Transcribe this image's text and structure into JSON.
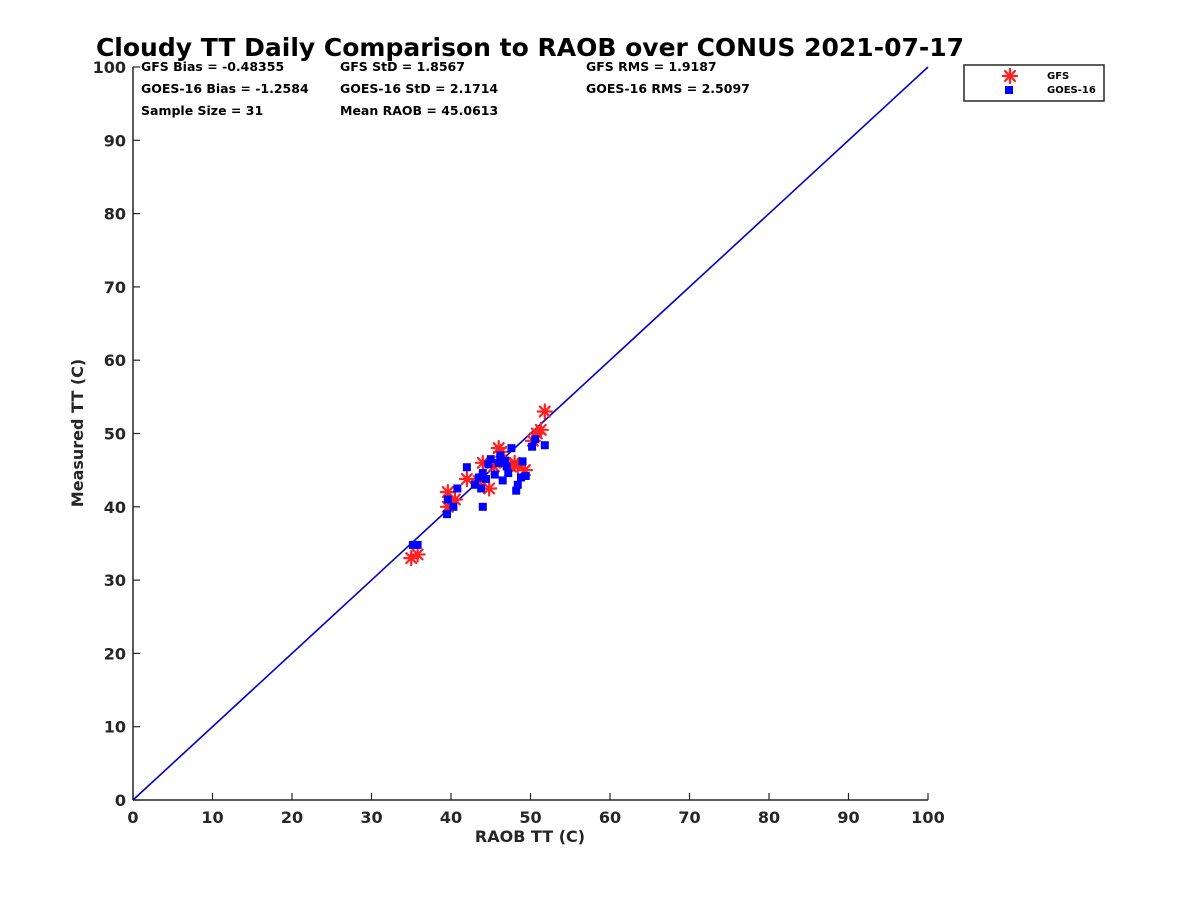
{
  "chart_data": {
    "type": "scatter",
    "title": "Cloudy TT Daily Comparison to RAOB over CONUS 2021-07-17",
    "xlabel": "RAOB TT (C)",
    "ylabel": "Measured TT (C)",
    "xlim": [
      0,
      100
    ],
    "ylim": [
      0,
      100
    ],
    "xticks": [
      "0",
      "10",
      "20",
      "30",
      "40",
      "50",
      "60",
      "70",
      "80",
      "90",
      "100"
    ],
    "yticks": [
      "0",
      "10",
      "20",
      "30",
      "40",
      "50",
      "60",
      "70",
      "80",
      "90",
      "100"
    ],
    "grid": false,
    "legend_position": "top-right (outside)",
    "stats": {
      "gfs_bias": "GFS Bias = -0.48355",
      "gfs_std": "GFS StD = 1.8567",
      "gfs_rms": "GFS RMS = 1.9187",
      "goes_bias": "GOES-16 Bias = -1.2584",
      "goes_std": "GOES-16 StD = 2.1714",
      "goes_rms": "GOES-16 RMS = 2.5097",
      "sample_size": "Sample Size = 31",
      "mean_raob": "Mean RAOB = 45.0613"
    },
    "reference_line": {
      "x": [
        0,
        100
      ],
      "y": [
        0,
        100
      ],
      "color": "#0000cc"
    },
    "series": [
      {
        "name": "GFS",
        "marker": "asterisk",
        "color": "#ff2020",
        "points": [
          [
            35.0,
            33.0
          ],
          [
            35.8,
            33.5
          ],
          [
            39.6,
            40.0
          ],
          [
            39.6,
            42.0
          ],
          [
            40.5,
            41.0
          ],
          [
            42.0,
            43.8
          ],
          [
            43.5,
            43.5
          ],
          [
            44.0,
            46.0
          ],
          [
            44.8,
            42.5
          ],
          [
            45.4,
            45.5
          ],
          [
            46.0,
            48.0
          ],
          [
            46.3,
            47.5
          ],
          [
            46.8,
            46.0
          ],
          [
            47.5,
            45.5
          ],
          [
            48.0,
            46.0
          ],
          [
            48.4,
            45.6
          ],
          [
            49.3,
            45.0
          ],
          [
            50.3,
            49.0
          ],
          [
            50.8,
            50.0
          ],
          [
            51.3,
            50.5
          ],
          [
            51.8,
            53.0
          ]
        ]
      },
      {
        "name": "GOES-16",
        "marker": "square",
        "color": "#0000ff",
        "points": [
          [
            35.2,
            34.8
          ],
          [
            35.8,
            34.8
          ],
          [
            39.5,
            39.0
          ],
          [
            39.6,
            41.0
          ],
          [
            40.3,
            40.0
          ],
          [
            40.8,
            42.5
          ],
          [
            42.0,
            45.4
          ],
          [
            43.0,
            43.0
          ],
          [
            43.5,
            44.0
          ],
          [
            43.8,
            42.5
          ],
          [
            44.0,
            40.0
          ],
          [
            44.0,
            44.6
          ],
          [
            44.4,
            43.8
          ],
          [
            44.7,
            45.8
          ],
          [
            45.0,
            46.5
          ],
          [
            45.5,
            44.4
          ],
          [
            46.0,
            46.0
          ],
          [
            46.2,
            47.0
          ],
          [
            46.5,
            43.6
          ],
          [
            46.8,
            46.3
          ],
          [
            47.2,
            44.6
          ],
          [
            47.6,
            48.0
          ],
          [
            48.2,
            42.2
          ],
          [
            48.4,
            43.0
          ],
          [
            48.8,
            44.0
          ],
          [
            49.0,
            46.2
          ],
          [
            49.4,
            44.2
          ],
          [
            50.2,
            48.2
          ],
          [
            50.6,
            49.2
          ],
          [
            51.8,
            48.4
          ],
          [
            47.0,
            45.5
          ]
        ]
      }
    ]
  }
}
